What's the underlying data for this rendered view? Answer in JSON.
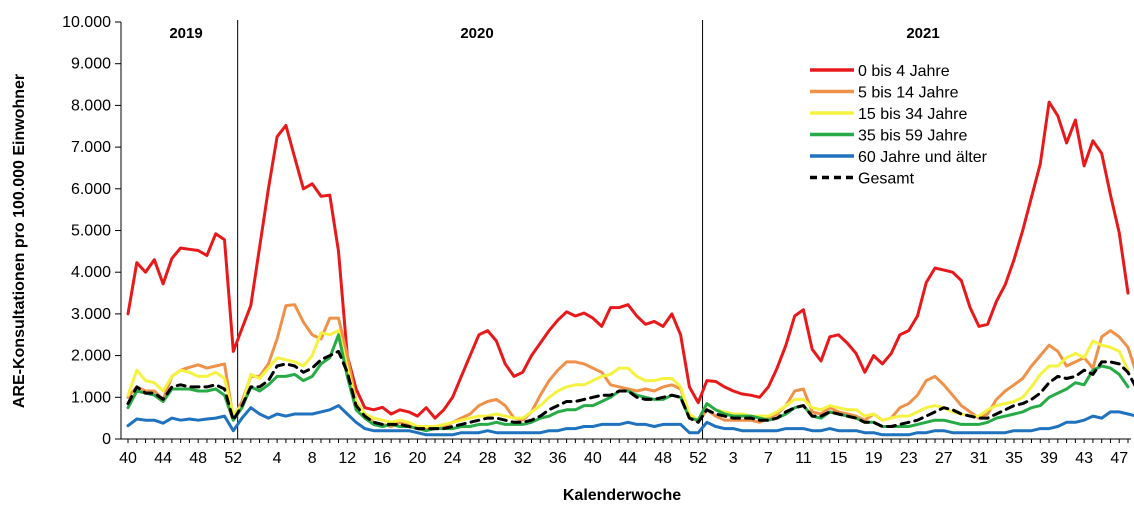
{
  "chart_data": {
    "type": "line",
    "ylabel": "ARE-Konsultationen pro 100.000 Einwohner",
    "xlabel": "Kalenderwoche",
    "ylim": [
      0,
      10000
    ],
    "yticks": [
      "0",
      "1.000",
      "2.000",
      "3.000",
      "4.000",
      "5.000",
      "6.000",
      "7.000",
      "8.000",
      "9.000",
      "10.000"
    ],
    "x_tick_labels": [
      "40",
      "44",
      "48",
      "52",
      "4",
      "8",
      "12",
      "16",
      "20",
      "24",
      "28",
      "32",
      "36",
      "40",
      "44",
      "48",
      "52",
      "3",
      "7",
      "11",
      "15",
      "19",
      "23",
      "27",
      "31",
      "35",
      "39",
      "43",
      "47"
    ],
    "x_tick_index": [
      0,
      4,
      8,
      12,
      17,
      21,
      25,
      29,
      33,
      37,
      41,
      45,
      49,
      53,
      57,
      61,
      65,
      69,
      73,
      77,
      81,
      85,
      89,
      93,
      97,
      101,
      105,
      109,
      113
    ],
    "year_labels": [
      "2019",
      "2020",
      "2021"
    ],
    "legend_position": "top-right",
    "series": [
      {
        "name": "0 bis 4 Jahre",
        "color": "#e8191a",
        "dash": "",
        "values": [
          3000,
          4230,
          4000,
          4300,
          3720,
          4330,
          4580,
          4550,
          4520,
          4400,
          4920,
          4780,
          2100,
          2650,
          3200,
          4600,
          6000,
          7250,
          7520,
          6750,
          6000,
          6120,
          5820,
          5850,
          4500,
          2000,
          1200,
          750,
          700,
          760,
          600,
          700,
          650,
          550,
          750,
          500,
          700,
          1000,
          1500,
          2000,
          2500,
          2600,
          2350,
          1800,
          1500,
          1600,
          2000,
          2300,
          2600,
          2850,
          3050,
          2950,
          3020,
          2900,
          2700,
          3150,
          3150,
          3220,
          2950,
          2750,
          2820,
          2700,
          3000,
          2500,
          1250,
          870,
          1400,
          1380,
          1250,
          1150,
          1080,
          1050,
          1000,
          1250,
          1700,
          2250,
          2950,
          3100,
          2150,
          1870,
          2450,
          2500,
          2300,
          2050,
          1600,
          2000,
          1800,
          2050,
          2500,
          2600,
          2950,
          3750,
          4100,
          4050,
          4000,
          3800,
          3150,
          2700,
          2750,
          3300,
          3700,
          4300,
          5000,
          5800,
          6600,
          8080,
          7750,
          7100,
          7650,
          6550,
          7150,
          6850,
          5850,
          4950,
          3500
        ]
      },
      {
        "name": "5 bis 14 Jahre",
        "color": "#f0914a",
        "dash": "",
        "values": [
          1000,
          1250,
          1150,
          1150,
          950,
          1500,
          1650,
          1720,
          1780,
          1700,
          1750,
          1800,
          500,
          900,
          1500,
          1500,
          1800,
          2400,
          3200,
          3220,
          2800,
          2500,
          2400,
          2900,
          2900,
          2000,
          900,
          600,
          400,
          350,
          300,
          400,
          350,
          250,
          250,
          250,
          300,
          400,
          500,
          600,
          800,
          900,
          950,
          800,
          500,
          450,
          650,
          1050,
          1400,
          1650,
          1850,
          1850,
          1800,
          1700,
          1600,
          1300,
          1250,
          1200,
          1150,
          1200,
          1150,
          1250,
          1300,
          1200,
          600,
          400,
          700,
          550,
          450,
          450,
          450,
          450,
          400,
          500,
          600,
          800,
          1150,
          1200,
          650,
          600,
          750,
          650,
          600,
          550,
          450,
          600,
          450,
          500,
          750,
          850,
          1050,
          1400,
          1500,
          1300,
          1050,
          800,
          650,
          500,
          600,
          950,
          1150,
          1300,
          1450,
          1750,
          2000,
          2250,
          2100,
          1750,
          1850,
          1950,
          1700,
          2450,
          2600,
          2450,
          2200,
          1550
        ]
      },
      {
        "name": "15 bis 34 Jahre",
        "color": "#f6f241",
        "dash": "",
        "values": [
          1050,
          1650,
          1400,
          1350,
          1150,
          1500,
          1650,
          1600,
          1500,
          1500,
          1600,
          1450,
          600,
          800,
          1550,
          1450,
          1700,
          1950,
          1900,
          1850,
          1750,
          2000,
          2550,
          2500,
          2600,
          1700,
          900,
          600,
          500,
          450,
          400,
          450,
          400,
          300,
          300,
          300,
          350,
          400,
          450,
          500,
          550,
          550,
          600,
          550,
          500,
          500,
          650,
          800,
          1000,
          1150,
          1250,
          1300,
          1300,
          1400,
          1500,
          1550,
          1700,
          1700,
          1500,
          1400,
          1400,
          1450,
          1450,
          1250,
          600,
          450,
          850,
          700,
          650,
          600,
          600,
          550,
          550,
          550,
          650,
          800,
          950,
          950,
          750,
          700,
          800,
          750,
          700,
          700,
          550,
          600,
          450,
          500,
          550,
          550,
          650,
          750,
          800,
          750,
          650,
          600,
          550,
          550,
          700,
          800,
          850,
          900,
          1000,
          1250,
          1550,
          1750,
          1750,
          1950,
          2050,
          1950,
          2350,
          2250,
          2200,
          2100,
          1650
        ]
      },
      {
        "name": "35 bis 59 Jahre",
        "color": "#27ab47",
        "dash": "",
        "values": [
          750,
          1150,
          1100,
          1050,
          900,
          1200,
          1200,
          1200,
          1150,
          1150,
          1200,
          1050,
          450,
          750,
          1250,
          1150,
          1300,
          1500,
          1500,
          1550,
          1400,
          1500,
          1800,
          1950,
          2500,
          1500,
          700,
          500,
          350,
          300,
          350,
          300,
          300,
          250,
          200,
          250,
          250,
          250,
          300,
          300,
          350,
          350,
          400,
          350,
          350,
          350,
          400,
          500,
          550,
          650,
          700,
          700,
          800,
          800,
          900,
          1000,
          1150,
          1150,
          1050,
          1000,
          950,
          950,
          1050,
          1000,
          500,
          450,
          850,
          700,
          600,
          550,
          550,
          550,
          500,
          450,
          500,
          600,
          750,
          800,
          550,
          500,
          650,
          600,
          550,
          500,
          400,
          400,
          300,
          300,
          300,
          300,
          350,
          400,
          450,
          450,
          400,
          350,
          350,
          350,
          400,
          500,
          550,
          600,
          650,
          750,
          800,
          1000,
          1100,
          1200,
          1350,
          1300,
          1650,
          1750,
          1700,
          1550,
          1250
        ]
      },
      {
        "name": "60 Jahre und älter",
        "color": "#1e72be",
        "dash": "",
        "values": [
          320,
          480,
          450,
          450,
          380,
          500,
          450,
          480,
          450,
          480,
          500,
          550,
          200,
          500,
          750,
          600,
          500,
          600,
          550,
          600,
          600,
          600,
          650,
          700,
          800,
          600,
          400,
          250,
          200,
          200,
          200,
          200,
          200,
          150,
          100,
          100,
          100,
          100,
          150,
          150,
          150,
          200,
          150,
          150,
          150,
          150,
          150,
          150,
          200,
          200,
          250,
          250,
          300,
          300,
          350,
          350,
          350,
          400,
          350,
          350,
          300,
          350,
          350,
          350,
          150,
          150,
          400,
          300,
          250,
          250,
          200,
          200,
          200,
          200,
          200,
          250,
          250,
          250,
          200,
          200,
          250,
          200,
          200,
          200,
          150,
          150,
          100,
          100,
          100,
          100,
          150,
          150,
          200,
          200,
          150,
          150,
          150,
          150,
          150,
          150,
          150,
          200,
          200,
          200,
          250,
          250,
          300,
          400,
          400,
          450,
          550,
          500,
          650,
          650,
          600,
          550,
          450
        ]
      },
      {
        "name": "Gesamt",
        "color": "#000000",
        "dash": "8,6",
        "values": [
          850,
          1250,
          1100,
          1100,
          950,
          1250,
          1300,
          1250,
          1250,
          1250,
          1300,
          1200,
          450,
          800,
          1250,
          1250,
          1400,
          1750,
          1800,
          1750,
          1600,
          1700,
          1900,
          2000,
          2100,
          1600,
          800,
          550,
          400,
          350,
          350,
          350,
          300,
          250,
          250,
          250,
          250,
          300,
          350,
          400,
          450,
          500,
          500,
          450,
          400,
          400,
          450,
          550,
          700,
          800,
          900,
          900,
          950,
          1000,
          1050,
          1050,
          1150,
          1150,
          1000,
          950,
          950,
          1000,
          1050,
          1000,
          500,
          400,
          700,
          600,
          550,
          500,
          500,
          500,
          450,
          450,
          500,
          650,
          750,
          800,
          550,
          550,
          650,
          600,
          550,
          500,
          400,
          400,
          300,
          300,
          350,
          400,
          450,
          550,
          650,
          750,
          700,
          600,
          550,
          500,
          500,
          600,
          700,
          800,
          850,
          950,
          1100,
          1350,
          1500,
          1450,
          1500,
          1650,
          1550,
          1850,
          1850,
          1800,
          1600,
          1200
        ]
      }
    ]
  }
}
